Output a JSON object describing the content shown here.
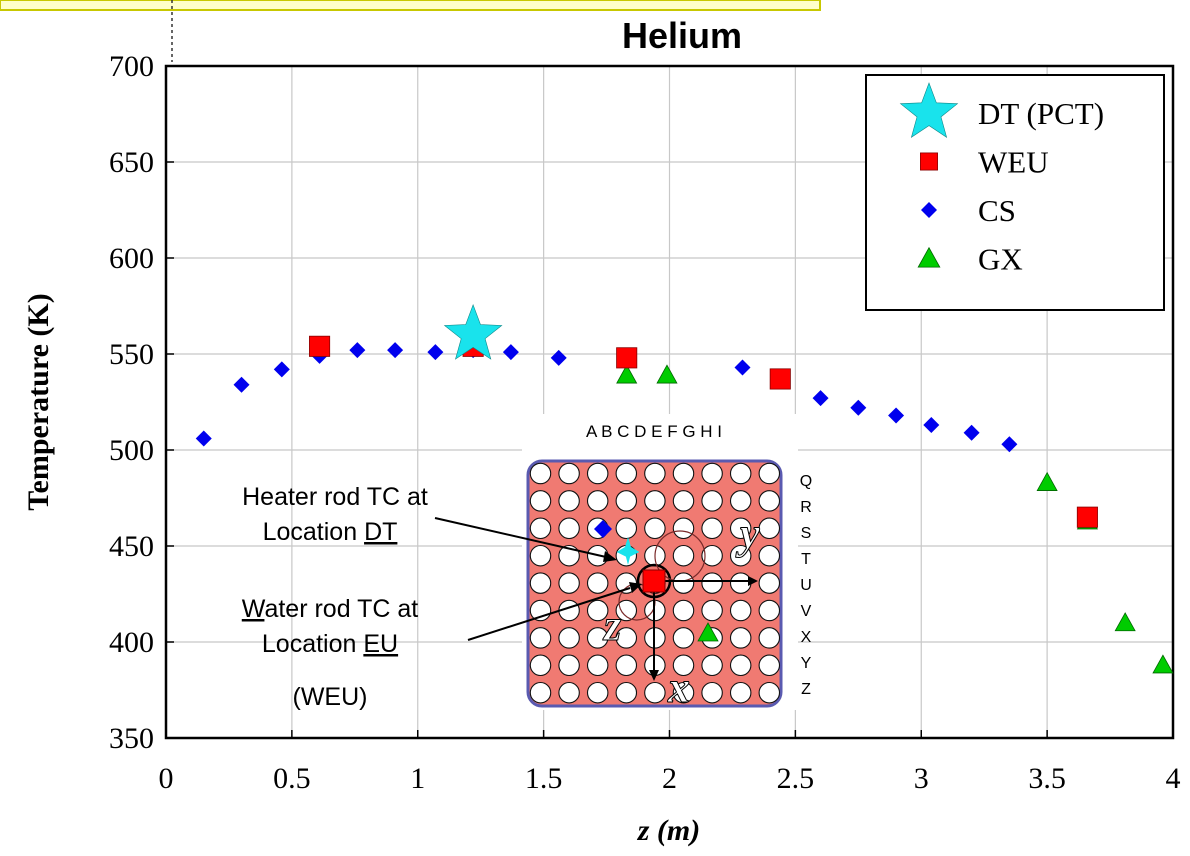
{
  "chart_data": {
    "type": "scatter",
    "title": "Helium",
    "xlabel": "z (m)",
    "ylabel": "Temperature (K)",
    "xlim": [
      0,
      4
    ],
    "ylim": [
      350,
      700
    ],
    "x_ticks": [
      "0",
      "0.5",
      "1",
      "1.5",
      "2",
      "2.5",
      "3",
      "3.5",
      "4"
    ],
    "y_ticks": [
      "350",
      "400",
      "450",
      "500",
      "550",
      "600",
      "650",
      "700"
    ],
    "grid": true,
    "legend_position": "top-right",
    "series": [
      {
        "name": "DT (PCT)",
        "marker": "star",
        "color": "#19e3ec",
        "points": [
          [
            1.22,
            560
          ]
        ]
      },
      {
        "name": "WEU",
        "marker": "square",
        "color": "#ff0000",
        "points": [
          [
            0.61,
            554
          ],
          [
            1.22,
            554
          ],
          [
            1.83,
            548
          ],
          [
            2.44,
            537
          ],
          [
            3.66,
            465
          ]
        ]
      },
      {
        "name": "CS",
        "marker": "diamond",
        "color": "#0000ee",
        "points": [
          [
            0.15,
            506
          ],
          [
            0.3,
            534
          ],
          [
            0.46,
            542
          ],
          [
            0.61,
            549
          ],
          [
            0.76,
            552
          ],
          [
            0.91,
            552
          ],
          [
            1.07,
            551
          ],
          [
            1.22,
            552
          ],
          [
            1.37,
            551
          ],
          [
            1.56,
            548
          ],
          [
            2.29,
            543
          ],
          [
            2.44,
            538
          ],
          [
            2.6,
            527
          ],
          [
            2.75,
            522
          ],
          [
            2.9,
            518
          ],
          [
            3.04,
            513
          ],
          [
            3.2,
            509
          ],
          [
            3.35,
            503
          ]
        ]
      },
      {
        "name": "GX",
        "marker": "triangle",
        "color": "#00cc00",
        "points": [
          [
            1.83,
            539
          ],
          [
            1.99,
            539
          ],
          [
            3.5,
            483
          ],
          [
            3.66,
            463
          ],
          [
            3.81,
            410
          ],
          [
            3.96,
            388
          ]
        ]
      }
    ],
    "annotations": {
      "heater_line1": "Heater rod TC at",
      "heater_line2_prefix": "Location ",
      "heater_line2_u": "DT",
      "water_line1_u": "W",
      "water_line1_rest": "ater rod TC at",
      "water_line2_prefix": "Location ",
      "water_line2_u": "EU",
      "water_line3": "(WEU)"
    },
    "inset": {
      "columns_label": "A B C D E F G H I",
      "rows": [
        "Q",
        "R",
        "S",
        "T",
        "U",
        "V",
        "X",
        "Y",
        "Z"
      ],
      "axis_x": "x",
      "axis_y": "y",
      "axis_z": "z",
      "fill_color": "#f07a72",
      "border_color": "#5a5ab0"
    }
  }
}
